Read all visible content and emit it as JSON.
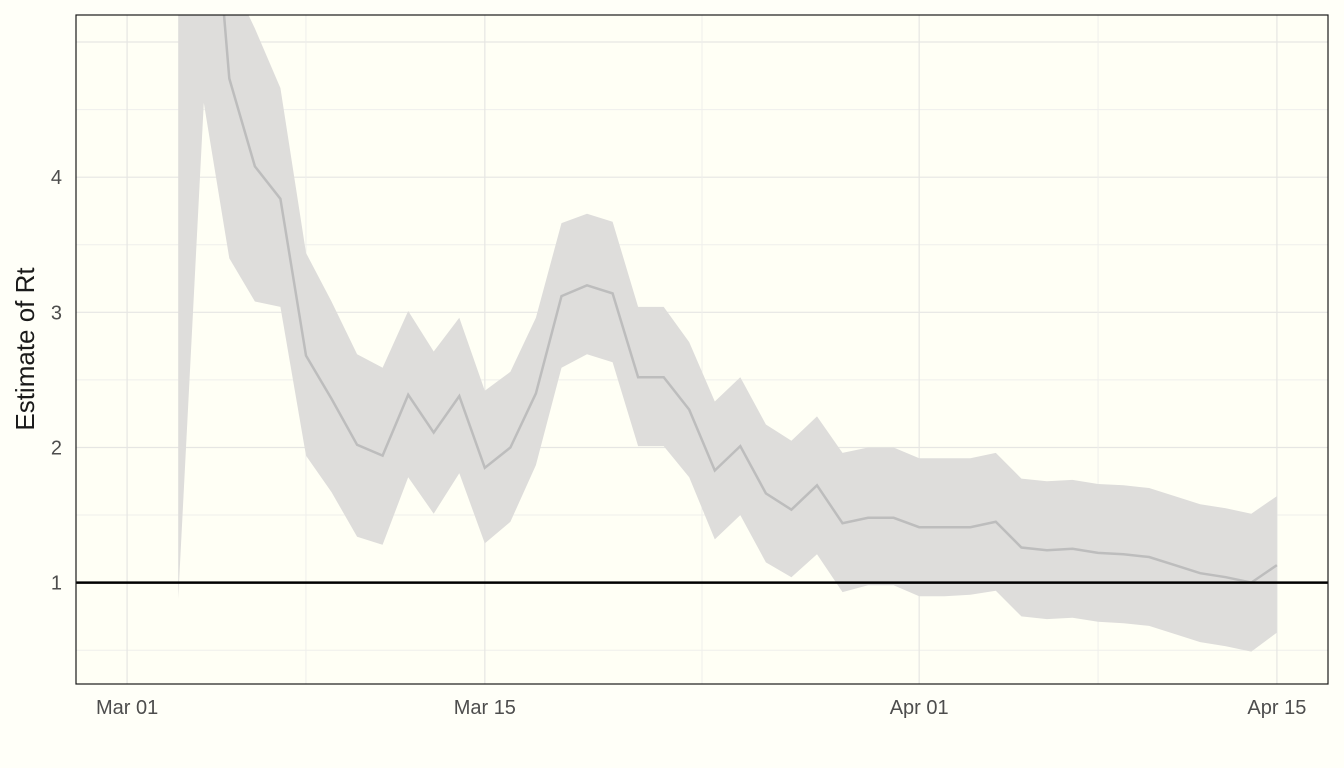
{
  "chart_data": {
    "type": "line",
    "title": "",
    "xlabel": "",
    "ylabel": "Estimate of Rt",
    "x_ticks": [
      {
        "date": "2020-03-01",
        "label": "Mar 01"
      },
      {
        "date": "2020-03-15",
        "label": "Mar 15"
      },
      {
        "date": "2020-04-01",
        "label": "Apr 01"
      },
      {
        "date": "2020-04-15",
        "label": "Apr 15"
      }
    ],
    "y_ticks": [
      1,
      2,
      3,
      4
    ],
    "xlim": [
      "2020-02-28",
      "2020-04-17"
    ],
    "ylim": [
      0.25,
      5.2
    ],
    "grid": true,
    "reference_line": {
      "y": 1,
      "color": "#000000"
    },
    "colors": {
      "line": "#bdbdbd",
      "band": "#dedddb",
      "background": "#fffff5"
    },
    "series": [
      {
        "x": [
          "2020-03-03",
          "2020-03-04",
          "2020-03-05",
          "2020-03-06",
          "2020-03-07",
          "2020-03-08",
          "2020-03-09",
          "2020-03-10",
          "2020-03-11",
          "2020-03-12",
          "2020-03-13",
          "2020-03-14",
          "2020-03-15",
          "2020-03-16",
          "2020-03-17",
          "2020-03-18",
          "2020-03-19",
          "2020-03-20",
          "2020-03-21",
          "2020-03-22",
          "2020-03-23",
          "2020-03-24",
          "2020-03-25",
          "2020-03-26",
          "2020-03-27",
          "2020-03-28",
          "2020-03-29",
          "2020-03-30",
          "2020-03-31",
          "2020-04-01",
          "2020-04-02",
          "2020-04-03",
          "2020-04-04",
          "2020-04-05",
          "2020-04-06",
          "2020-04-07",
          "2020-04-08",
          "2020-04-09",
          "2020-04-10",
          "2020-04-11",
          "2020-04-12",
          "2020-04-13",
          "2020-04-14",
          "2020-04-15"
        ],
        "y": [
          null,
          7.0,
          4.73,
          4.08,
          3.84,
          2.68,
          2.36,
          2.02,
          1.94,
          2.39,
          2.11,
          2.38,
          1.85,
          2.0,
          2.4,
          3.12,
          3.2,
          3.14,
          2.52,
          2.52,
          2.28,
          1.83,
          2.01,
          1.66,
          1.54,
          1.72,
          1.44,
          1.48,
          1.48,
          1.41,
          1.41,
          1.41,
          1.45,
          1.26,
          1.24,
          1.25,
          1.22,
          1.21,
          1.19,
          1.13,
          1.07,
          1.04,
          1.0,
          1.13
        ],
        "lower": [
          0.88,
          4.55,
          3.4,
          3.08,
          3.04,
          1.94,
          1.67,
          1.34,
          1.28,
          1.78,
          1.51,
          1.81,
          1.29,
          1.45,
          1.87,
          2.59,
          2.69,
          2.63,
          2.01,
          2.01,
          1.78,
          1.32,
          1.5,
          1.15,
          1.04,
          1.21,
          0.93,
          0.98,
          0.98,
          0.9,
          0.9,
          0.91,
          0.94,
          0.75,
          0.73,
          0.74,
          0.71,
          0.7,
          0.68,
          0.62,
          0.56,
          0.53,
          0.49,
          0.63
        ],
        "upper": [
          9.0,
          9.0,
          5.5,
          5.1,
          4.66,
          3.44,
          3.08,
          2.69,
          2.59,
          3.01,
          2.71,
          2.96,
          2.42,
          2.56,
          2.96,
          3.66,
          3.73,
          3.67,
          3.04,
          3.04,
          2.78,
          2.34,
          2.52,
          2.17,
          2.05,
          2.23,
          1.96,
          2.0,
          2.0,
          1.92,
          1.92,
          1.92,
          1.96,
          1.77,
          1.75,
          1.76,
          1.73,
          1.72,
          1.7,
          1.64,
          1.58,
          1.55,
          1.51,
          1.64
        ]
      }
    ]
  }
}
